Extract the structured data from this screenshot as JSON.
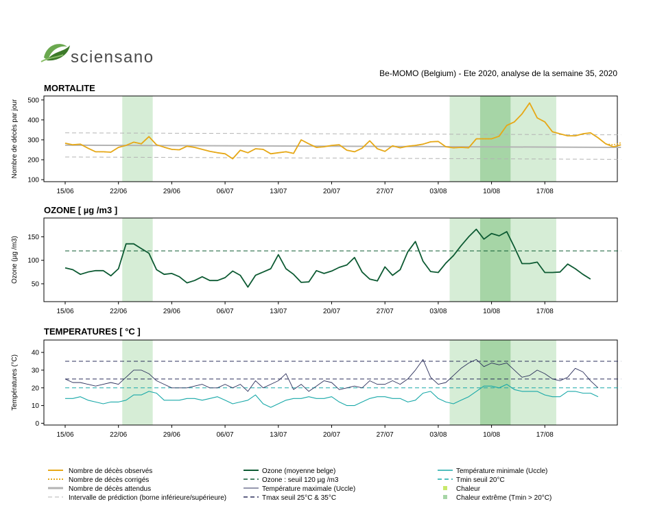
{
  "header": {
    "logo_text": "sciensano",
    "report_title": "Be-MOMO (Belgium) - Ete 2020, analyse de la semaine 35, 2020"
  },
  "colors": {
    "observed": "#e6a817",
    "expected": "#b3b3b3",
    "interval": "#b3b3b3",
    "ozone": "#0c5a32",
    "ozone_threshold": "#0c5a32",
    "tmax": "#2b2f5b",
    "tmax_threshold": "#2b2f5b",
    "tmin": "#17a8a8",
    "tmin_threshold": "#17a8a8",
    "heat": "#d6edd6",
    "extreme_heat": "#a6d5a6",
    "logo_green": "#6aa84f"
  },
  "chart_data": [
    {
      "type": "line",
      "title": "MORTALITE",
      "ylabel": "Nombre de décès par jour",
      "ylim": [
        90,
        520
      ],
      "yticks": [
        100,
        200,
        300,
        400,
        500
      ],
      "x_start": "15/06",
      "x_days": 74,
      "xtick_labels": [
        "15/06",
        "22/06",
        "29/06",
        "06/07",
        "13/07",
        "20/07",
        "27/07",
        "03/08",
        "10/08",
        "17/08"
      ],
      "heat_periods": [
        [
          8,
          11
        ],
        [
          51,
          64
        ]
      ],
      "extreme_heat_periods": [
        [
          55,
          58
        ]
      ],
      "series": [
        {
          "name": "Nombre de décès observés",
          "style": "solid",
          "values": [
            283,
            275,
            278,
            258,
            240,
            240,
            238,
            262,
            272,
            288,
            280,
            316,
            275,
            263,
            252,
            250,
            268,
            262,
            252,
            242,
            235,
            230,
            205,
            248,
            235,
            255,
            252,
            230,
            235,
            240,
            232,
            300,
            280,
            262,
            265,
            272,
            275,
            248,
            240,
            258,
            295,
            255,
            242,
            270,
            260,
            268,
            272,
            278,
            290,
            292,
            265,
            260,
            262,
            260,
            305,
            305,
            305,
            318,
            372,
            390,
            430,
            485,
            410,
            390,
            340,
            330,
            320,
            320,
            330,
            335,
            310,
            280,
            265,
            275
          ]
        },
        {
          "name": "Nombre de décès corrigés",
          "style": "dotted",
          "values": [
            283,
            275,
            278,
            258,
            240,
            240,
            238,
            262,
            272,
            288,
            280,
            316,
            275,
            263,
            252,
            250,
            268,
            262,
            252,
            242,
            235,
            230,
            205,
            248,
            235,
            255,
            252,
            230,
            235,
            240,
            232,
            300,
            280,
            262,
            265,
            272,
            275,
            248,
            240,
            258,
            295,
            255,
            242,
            270,
            260,
            268,
            272,
            278,
            290,
            292,
            265,
            260,
            262,
            260,
            305,
            305,
            305,
            318,
            372,
            390,
            430,
            485,
            410,
            390,
            340,
            330,
            320,
            320,
            330,
            335,
            310,
            280,
            275,
            285
          ]
        },
        {
          "name": "Nombre de décès attendus",
          "style": "solid",
          "linear": [
            273,
            262
          ]
        },
        {
          "name": "Intervalle de prédiction (borne inférieure/supérieure)",
          "style": "dashed",
          "linear": [
            335,
            325
          ],
          "linear2": [
            214,
            202
          ]
        }
      ]
    },
    {
      "type": "line",
      "title": "OZONE [ µg /m3 ]",
      "ylabel": "Ozone (µg /m3)",
      "ylim": [
        12,
        190
      ],
      "yticks": [
        50,
        100,
        150
      ],
      "x_start": "15/06",
      "x_days": 74,
      "xtick_labels": [
        "15/06",
        "22/06",
        "29/06",
        "06/07",
        "13/07",
        "20/07",
        "27/07",
        "03/08",
        "10/08",
        "17/08"
      ],
      "heat_periods": [
        [
          8,
          11
        ],
        [
          51,
          64
        ]
      ],
      "extreme_heat_periods": [
        [
          55,
          58
        ]
      ],
      "series": [
        {
          "name": "Ozone (moyenne belge)",
          "style": "solid",
          "values": [
            84,
            80,
            70,
            75,
            78,
            78,
            67,
            82,
            135,
            135,
            125,
            115,
            80,
            70,
            72,
            65,
            52,
            57,
            65,
            57,
            57,
            63,
            77,
            68,
            43,
            68,
            75,
            82,
            112,
            82,
            70,
            53,
            54,
            78,
            72,
            77,
            85,
            90,
            106,
            75,
            60,
            56,
            86,
            68,
            80,
            118,
            140,
            98,
            76,
            74,
            94,
            110,
            131,
            150,
            166,
            145,
            157,
            152,
            161,
            128,
            93,
            93,
            96,
            74,
            74,
            75,
            92,
            82,
            70,
            60
          ]
        },
        {
          "name": "Ozone : seuil 120 µg /m3",
          "style": "dashed",
          "constant": 120
        }
      ]
    },
    {
      "type": "line",
      "title": "TEMPERATURES [ °C ]",
      "ylabel": "Températures (°C)",
      "ylim": [
        -1,
        47
      ],
      "yticks": [
        0,
        10,
        20,
        30,
        40
      ],
      "x_start": "15/06",
      "x_days": 74,
      "xtick_labels": [
        "15/06",
        "22/06",
        "29/06",
        "06/07",
        "13/07",
        "20/07",
        "27/07",
        "03/08",
        "10/08",
        "17/08"
      ],
      "heat_periods": [
        [
          8,
          11
        ],
        [
          51,
          64
        ]
      ],
      "extreme_heat_periods": [
        [
          55,
          58
        ]
      ],
      "series": [
        {
          "name": "Température maximale (Uccle)",
          "style": "solid",
          "values": [
            25,
            23,
            23,
            22,
            21,
            22,
            23,
            22,
            26,
            30,
            30,
            28,
            24,
            22,
            20,
            20,
            20,
            21,
            22,
            20,
            20,
            22,
            20,
            22,
            18,
            24,
            20,
            22,
            24,
            28,
            19,
            22,
            18,
            21,
            24,
            23,
            19,
            20,
            21,
            20,
            24,
            22,
            22,
            24,
            22,
            25,
            30,
            36,
            26,
            22,
            23,
            27,
            31,
            34,
            36,
            32,
            34,
            33,
            34,
            30,
            26,
            27,
            30,
            28,
            25,
            24,
            26,
            31,
            29,
            24,
            20
          ]
        },
        {
          "name": "Tmax seuil 25°C & 35°C",
          "style": "dashed",
          "constant": 25,
          "constant2": 35
        },
        {
          "name": "Température minimale (Uccle)",
          "style": "solid",
          "values": [
            14,
            14,
            15,
            13,
            12,
            11,
            12,
            12,
            13,
            16,
            16,
            18,
            17,
            13,
            13,
            13,
            14,
            14,
            13,
            14,
            15,
            13,
            11,
            12,
            13,
            16,
            11,
            9,
            11,
            13,
            14,
            14,
            15,
            14,
            14,
            15,
            12,
            10,
            10,
            12,
            14,
            15,
            15,
            14,
            14,
            12,
            13,
            17,
            18,
            14,
            12,
            11,
            13,
            15,
            18,
            21,
            21,
            20,
            22,
            19,
            18,
            18,
            18,
            16,
            15,
            15,
            18,
            18,
            17,
            17,
            15
          ]
        },
        {
          "name": "Tmin seuil 20°C",
          "style": "dashed",
          "constant": 20
        }
      ]
    }
  ],
  "legend": {
    "col1": [
      "Nombre de décès observés",
      "Nombre de décès corrigés",
      "Nombre de décès attendus",
      "Intervalle de prédiction (borne inférieure/supérieure)"
    ],
    "col2": [
      "Ozone (moyenne belge)",
      "Ozone : seuil 120 µg /m3",
      "Température maximale (Uccle)",
      "Tmax seuil 25°C & 35°C"
    ],
    "col3": [
      "Température minimale (Uccle)",
      "Tmin seuil 20°C",
      "Chaleur",
      "Chaleur extrême (Tmin > 20°C)"
    ]
  }
}
